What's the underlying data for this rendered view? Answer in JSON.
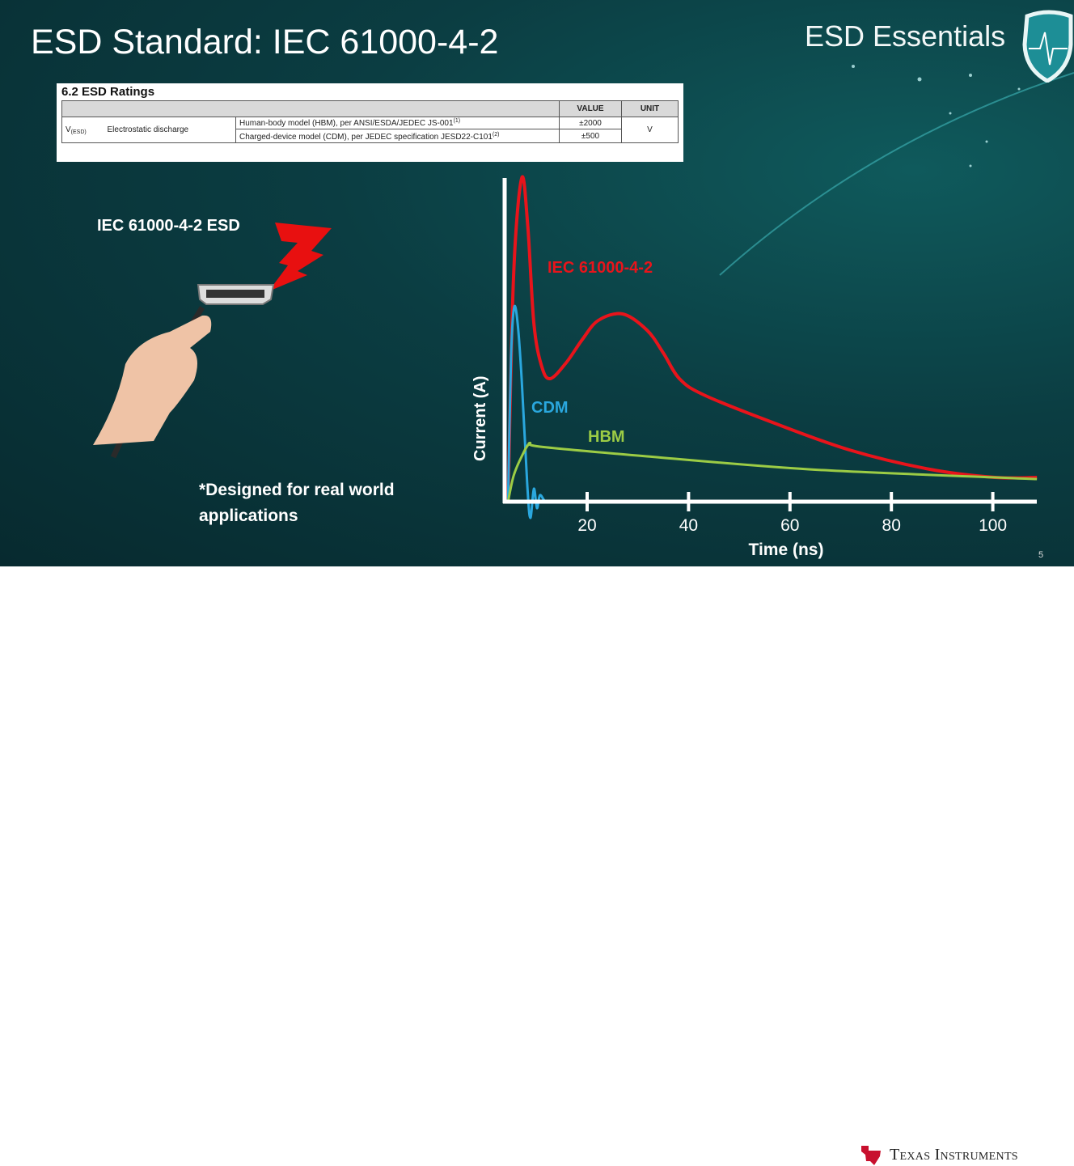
{
  "slide": {
    "title": "ESD Standard: IEC 61000-4-2",
    "brand": "ESD Essentials",
    "page_number": "5",
    "left_label": "IEC 61000-4-2 ESD",
    "note": "*Designed for real world applications",
    "footer_logo": "Texas Instruments"
  },
  "table": {
    "heading": "6.2   ESD Ratings",
    "headers": [
      "VALUE",
      "UNIT"
    ],
    "symbol": "V",
    "symbol_sub": "(ESD)",
    "parameter": "Electrostatic discharge",
    "rows": [
      {
        "condition": "Human-body model (HBM), per ANSI/ESDA/JEDEC JS-001",
        "note": "(1)",
        "value": "±2000"
      },
      {
        "condition": "Charged-device model (CDM), per JEDEC specification JESD22-C101",
        "note": "(2)",
        "value": "±500"
      }
    ],
    "unit": "V"
  },
  "chart_data": {
    "type": "line",
    "xlabel": "Time (ns)",
    "ylabel": "Current (A)",
    "xticks": [
      20,
      40,
      60,
      80,
      100
    ],
    "xlim": [
      3.7,
      108
    ],
    "y_tick_labels": false,
    "grid": false,
    "series": [
      {
        "name": "IEC 61000-4-2",
        "color": "#e8141b",
        "x": [
          4.4,
          5.5,
          7.1,
          8.3,
          9.5,
          11,
          12.7,
          15.9,
          19,
          22.2,
          27,
          31.8,
          35,
          38.2,
          43,
          55.7,
          71.7,
          87.6,
          100.4,
          108.7
        ],
        "y": [
          0,
          0.7,
          1.0,
          0.85,
          0.55,
          0.42,
          0.38,
          0.43,
          0.5,
          0.56,
          0.58,
          0.53,
          0.46,
          0.38,
          0.33,
          0.25,
          0.16,
          0.1,
          0.075,
          0.075
        ]
      },
      {
        "name": "CDM",
        "color": "#2aa7de",
        "x": [
          4.4,
          5.0,
          5.6,
          6.3,
          7.1,
          8.2,
          8.8,
          9.5,
          10.1,
          10.7,
          11.8,
          13.4
        ],
        "y": [
          0,
          0.45,
          0.6,
          0.55,
          0.375,
          0.05,
          -0.05,
          0.04,
          -0.02,
          0.02,
          0,
          0
        ]
      },
      {
        "name": "HBM",
        "color": "#9ccc45",
        "x": [
          4.4,
          5.5,
          7.1,
          8.7,
          10.7,
          31.8,
          63.7,
          100.4,
          108.7
        ],
        "y": [
          0,
          0.08,
          0.14,
          0.18,
          0.17,
          0.14,
          0.1,
          0.075,
          0.07
        ]
      }
    ]
  }
}
